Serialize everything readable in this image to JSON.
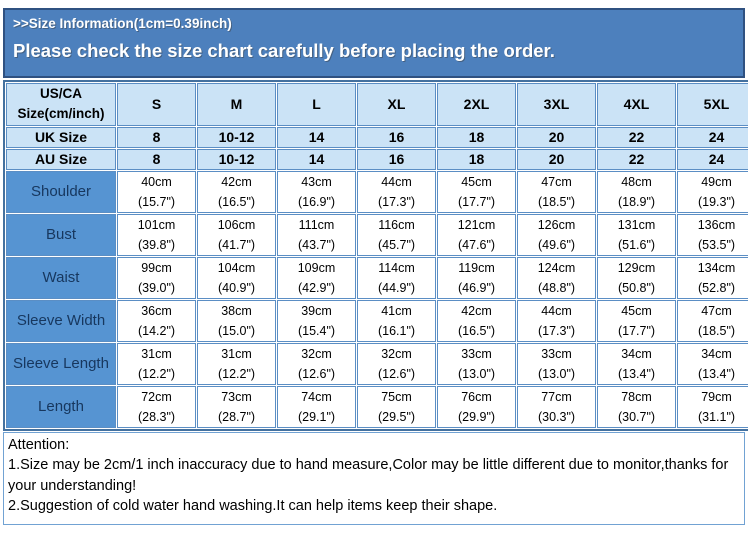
{
  "banner": {
    "line1": ">>Size Information(1cm=0.39inch)",
    "line2": "Please check the size chart carefully before placing the order."
  },
  "table": {
    "corner_label": "US/CA Size(cm/inch)",
    "size_headers": [
      "S",
      "M",
      "L",
      "XL",
      "2XL",
      "3XL",
      "4XL",
      "5XL"
    ],
    "uk_row": {
      "label": "UK Size",
      "values": [
        "8",
        "10-12",
        "14",
        "16",
        "18",
        "20",
        "22",
        "24"
      ]
    },
    "au_row": {
      "label": "AU Size",
      "values": [
        "8",
        "10-12",
        "14",
        "16",
        "18",
        "20",
        "22",
        "24"
      ]
    },
    "measurement_rows": [
      {
        "label": "Shoulder",
        "values": [
          {
            "cm": "40cm",
            "inch": "(15.7\")"
          },
          {
            "cm": "42cm",
            "inch": "(16.5\")"
          },
          {
            "cm": "43cm",
            "inch": "(16.9\")"
          },
          {
            "cm": "44cm",
            "inch": "(17.3\")"
          },
          {
            "cm": "45cm",
            "inch": "(17.7\")"
          },
          {
            "cm": "47cm",
            "inch": "(18.5\")"
          },
          {
            "cm": "48cm",
            "inch": "(18.9\")"
          },
          {
            "cm": "49cm",
            "inch": "(19.3\")"
          }
        ]
      },
      {
        "label": "Bust",
        "values": [
          {
            "cm": "101cm",
            "inch": "(39.8\")"
          },
          {
            "cm": "106cm",
            "inch": "(41.7\")"
          },
          {
            "cm": "111cm",
            "inch": "(43.7\")"
          },
          {
            "cm": "116cm",
            "inch": "(45.7\")"
          },
          {
            "cm": "121cm",
            "inch": "(47.6\")"
          },
          {
            "cm": "126cm",
            "inch": "(49.6\")"
          },
          {
            "cm": "131cm",
            "inch": "(51.6\")"
          },
          {
            "cm": "136cm",
            "inch": "(53.5\")"
          }
        ]
      },
      {
        "label": "Waist",
        "values": [
          {
            "cm": "99cm",
            "inch": "(39.0\")"
          },
          {
            "cm": "104cm",
            "inch": "(40.9\")"
          },
          {
            "cm": "109cm",
            "inch": "(42.9\")"
          },
          {
            "cm": "114cm",
            "inch": "(44.9\")"
          },
          {
            "cm": "119cm",
            "inch": "(46.9\")"
          },
          {
            "cm": "124cm",
            "inch": "(48.8\")"
          },
          {
            "cm": "129cm",
            "inch": "(50.8\")"
          },
          {
            "cm": "134cm",
            "inch": "(52.8\")"
          }
        ]
      },
      {
        "label": "Sleeve Width",
        "values": [
          {
            "cm": "36cm",
            "inch": "(14.2\")"
          },
          {
            "cm": "38cm",
            "inch": "(15.0\")"
          },
          {
            "cm": "39cm",
            "inch": "(15.4\")"
          },
          {
            "cm": "41cm",
            "inch": "(16.1\")"
          },
          {
            "cm": "42cm",
            "inch": "(16.5\")"
          },
          {
            "cm": "44cm",
            "inch": "(17.3\")"
          },
          {
            "cm": "45cm",
            "inch": "(17.7\")"
          },
          {
            "cm": "47cm",
            "inch": "(18.5\")"
          }
        ]
      },
      {
        "label": "Sleeve Length",
        "values": [
          {
            "cm": "31cm",
            "inch": "(12.2\")"
          },
          {
            "cm": "31cm",
            "inch": "(12.2\")"
          },
          {
            "cm": "32cm",
            "inch": "(12.6\")"
          },
          {
            "cm": "32cm",
            "inch": "(12.6\")"
          },
          {
            "cm": "33cm",
            "inch": "(13.0\")"
          },
          {
            "cm": "33cm",
            "inch": "(13.0\")"
          },
          {
            "cm": "34cm",
            "inch": "(13.4\")"
          },
          {
            "cm": "34cm",
            "inch": "(13.4\")"
          }
        ]
      },
      {
        "label": "Length",
        "values": [
          {
            "cm": "72cm",
            "inch": "(28.3\")"
          },
          {
            "cm": "73cm",
            "inch": "(28.7\")"
          },
          {
            "cm": "74cm",
            "inch": "(29.1\")"
          },
          {
            "cm": "75cm",
            "inch": "(29.5\")"
          },
          {
            "cm": "76cm",
            "inch": "(29.9\")"
          },
          {
            "cm": "77cm",
            "inch": "(30.3\")"
          },
          {
            "cm": "78cm",
            "inch": "(30.7\")"
          },
          {
            "cm": "79cm",
            "inch": "(31.1\")"
          }
        ]
      }
    ]
  },
  "attention": {
    "title": "Attention:",
    "lines": [
      "1.Size may be 2cm/1 inch inaccuracy due to hand measure,Color may be little different due to monitor,thanks for your understanding!",
      "2.Suggestion of cold water hand washing.It can help items keep their shape."
    ]
  },
  "colors": {
    "banner_bg": "#4d80bd",
    "banner_border": "#2f5181",
    "header_cell_bg": "#cbe3f6",
    "row_label_bg": "#5694d2",
    "row_label_text": "#17375e",
    "grid_border": "#5b8ec4",
    "outer_border": "#44719f"
  }
}
